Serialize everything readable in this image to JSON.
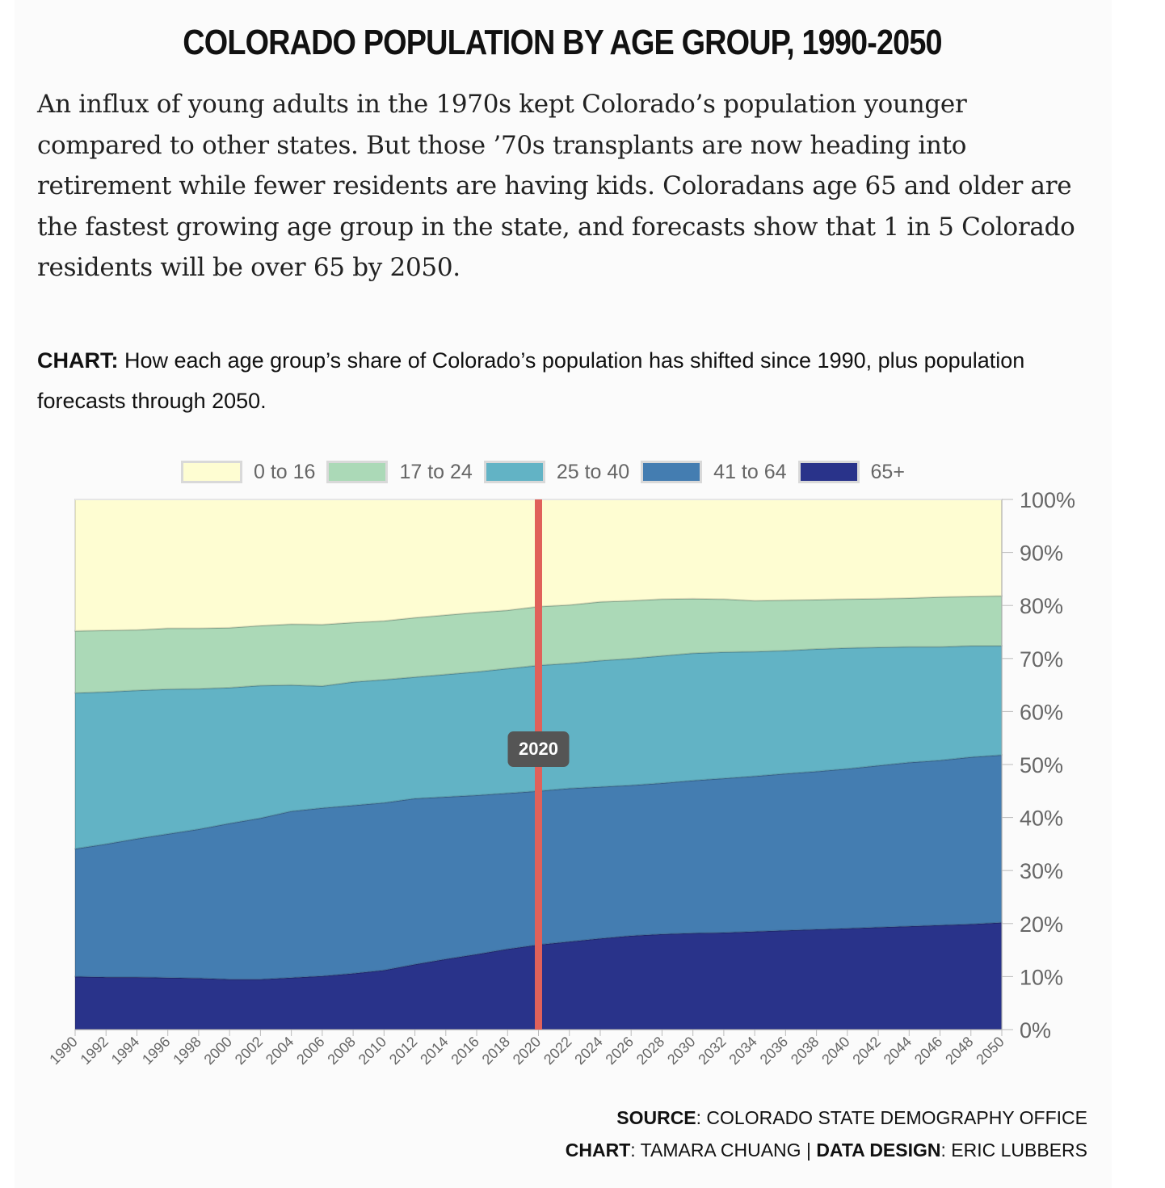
{
  "header": {
    "title": "COLORADO POPULATION BY AGE GROUP, 1990-2050",
    "intro": "An influx of young adults in the 1970s kept Colorado’s population younger compared to other states. But those ’70s transplants are now heading into retirement while fewer residents are having kids. Coloradans age 65 and older are the fastest growing age group in the state, and forecasts show that 1 in 5 Colorado residents will be over 65 by 2050."
  },
  "chart_note": {
    "label": "CHART:",
    "text": " How each age group’s share of Colorado’s population has shifted since 1990, plus population forecasts through 2050."
  },
  "credits": {
    "source_label": "SOURCE",
    "source_value": ": COLORADO STATE DEMOGRAPHY OFFICE",
    "chart_label": "CHART",
    "chart_value": ": TAMARA CHUANG | ",
    "design_label": "DATA DESIGN",
    "design_value": ": ERIC LUBBERS"
  },
  "colors": {
    "0 to 16": "#fefdd2",
    "17 to 24": "#abd9b7",
    "25 to 40": "#62b3c5",
    "41 to 64": "#447db1",
    "65+": "#29338a",
    "marker": "#e0615a"
  },
  "chart_data": {
    "type": "area",
    "stacked": true,
    "title": "",
    "xlabel": "",
    "ylabel": "",
    "ylim": [
      0,
      100
    ],
    "y_ticks": [
      "0%",
      "10%",
      "20%",
      "30%",
      "40%",
      "50%",
      "60%",
      "70%",
      "80%",
      "90%",
      "100%"
    ],
    "y_axis_position": "right",
    "legend_position": "top",
    "x": [
      1990,
      1992,
      1994,
      1996,
      1998,
      2000,
      2002,
      2004,
      2006,
      2008,
      2010,
      2012,
      2014,
      2016,
      2018,
      2020,
      2022,
      2024,
      2026,
      2028,
      2030,
      2032,
      2034,
      2036,
      2038,
      2040,
      2042,
      2044,
      2046,
      2048,
      2050
    ],
    "marker": {
      "x": 2020,
      "label": "2020"
    },
    "series": [
      {
        "name": "65+",
        "values": [
          10,
          9.9,
          9.9,
          9.8,
          9.7,
          9.5,
          9.5,
          9.8,
          10.1,
          10.6,
          11.2,
          12.3,
          13.3,
          14.2,
          15.2,
          16.0,
          16.6,
          17.2,
          17.7,
          18.0,
          18.2,
          18.3,
          18.5,
          18.7,
          18.9,
          19.1,
          19.3,
          19.5,
          19.7,
          19.9,
          20.2
        ]
      },
      {
        "name": "41 to 64",
        "values": [
          24.1,
          25.1,
          26.1,
          27.1,
          28.1,
          29.4,
          30.4,
          31.4,
          31.7,
          31.7,
          31.6,
          31.3,
          30.6,
          30.0,
          29.4,
          29.0,
          28.9,
          28.6,
          28.4,
          28.5,
          28.8,
          29.1,
          29.3,
          29.6,
          29.8,
          30.1,
          30.5,
          30.9,
          31.1,
          31.5,
          31.6
        ]
      },
      {
        "name": "25 to 40",
        "values": [
          29.4,
          28.7,
          28.0,
          27.3,
          26.5,
          25.6,
          25.0,
          23.8,
          23.0,
          23.3,
          23.2,
          22.9,
          23.1,
          23.3,
          23.5,
          23.7,
          23.6,
          23.8,
          23.9,
          24.0,
          24.0,
          23.8,
          23.5,
          23.2,
          23.1,
          22.8,
          22.3,
          21.8,
          21.4,
          21.0,
          20.6
        ]
      },
      {
        "name": "17 to 24",
        "values": [
          11.7,
          11.6,
          11.4,
          11.5,
          11.4,
          11.3,
          11.3,
          11.5,
          11.6,
          11.2,
          11.1,
          11.2,
          11.2,
          11.2,
          11.0,
          11.1,
          11.0,
          11.1,
          10.9,
          10.7,
          10.3,
          10.0,
          9.6,
          9.5,
          9.3,
          9.2,
          9.2,
          9.2,
          9.4,
          9.3,
          9.4
        ]
      },
      {
        "name": "0 to 16",
        "values": [
          24.8,
          24.7,
          24.6,
          24.3,
          24.3,
          24.2,
          23.8,
          23.5,
          23.6,
          23.2,
          22.9,
          22.3,
          21.8,
          21.3,
          20.9,
          20.2,
          19.9,
          19.3,
          19.1,
          18.8,
          18.7,
          18.8,
          19.1,
          19.0,
          18.9,
          18.8,
          18.7,
          18.6,
          18.4,
          18.3,
          18.2
        ]
      }
    ]
  }
}
